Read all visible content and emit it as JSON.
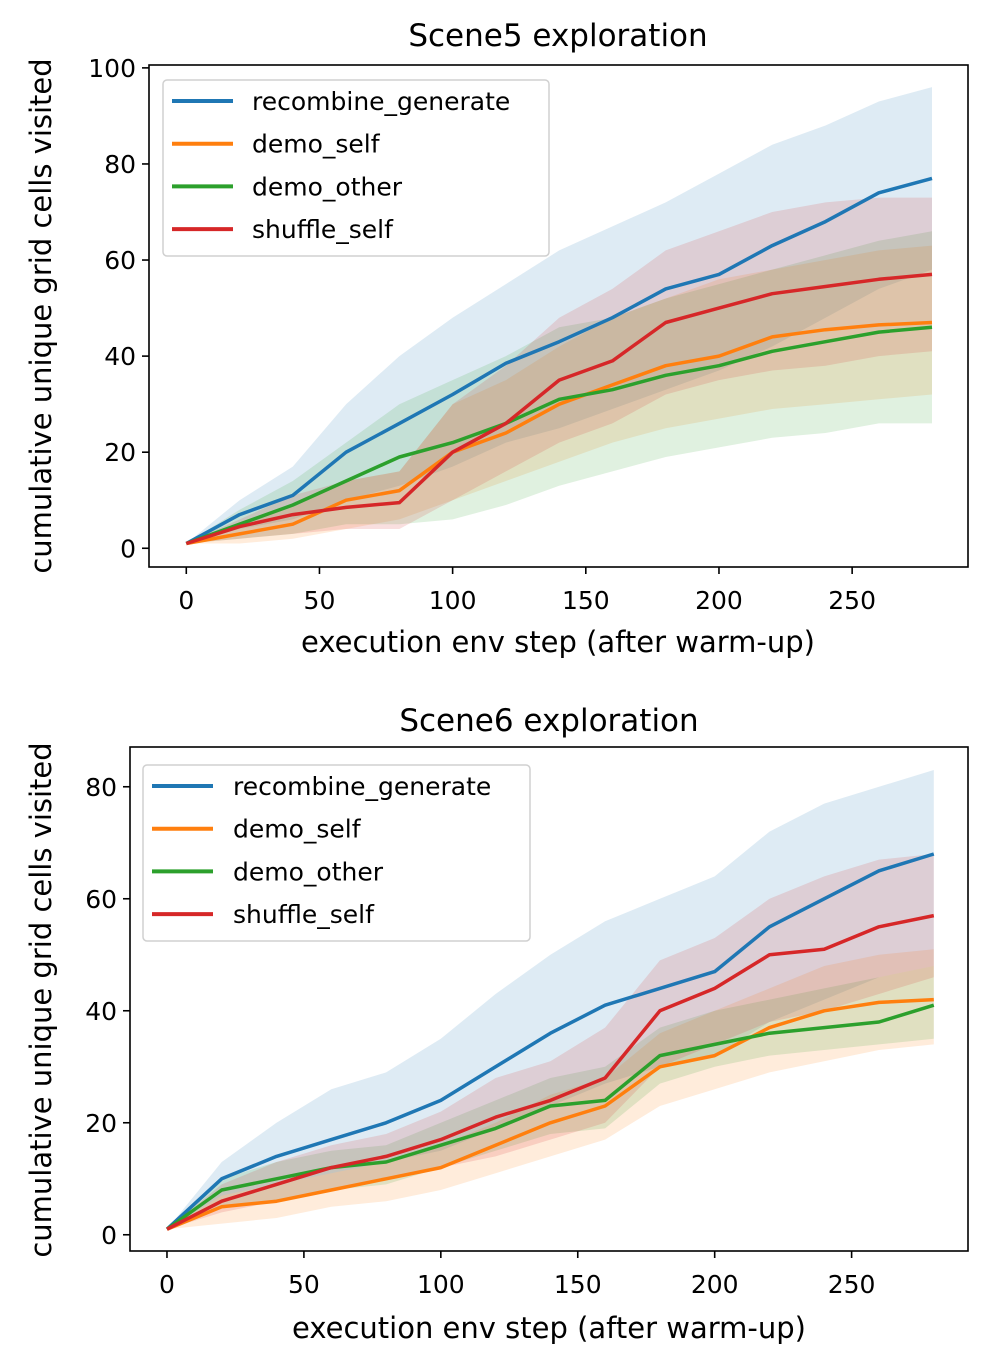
{
  "chart_data": [
    {
      "type": "line",
      "title": "Scene5 exploration",
      "xlabel": "execution env step (after warm-up)",
      "ylabel": "cumulative unique grid cells visited",
      "xlim": [
        -14,
        293.5
      ],
      "ylim": [
        -3.9,
        100.6
      ],
      "xticks": [
        0,
        50,
        100,
        150,
        200,
        250
      ],
      "yticks": [
        0,
        20,
        40,
        60,
        80,
        100
      ],
      "grid": false,
      "legend_position": "top-left",
      "x": [
        0,
        20,
        40,
        60,
        80,
        100,
        120,
        140,
        160,
        180,
        200,
        220,
        240,
        260,
        280
      ],
      "series": [
        {
          "name": "recombine_generate",
          "color": "#1f77b4",
          "values": [
            1,
            7,
            11,
            20,
            26,
            32,
            38.5,
            43,
            48,
            54,
            57,
            63,
            68,
            74,
            77
          ],
          "upper": [
            1,
            10,
            17,
            30,
            40,
            48,
            55,
            62,
            67,
            72,
            78,
            84,
            88,
            93,
            96
          ],
          "lower": [
            1,
            4,
            6,
            10,
            13,
            17,
            22,
            25,
            29,
            33,
            37,
            42,
            48,
            54,
            58
          ]
        },
        {
          "name": "demo_self",
          "color": "#ff7f0e",
          "values": [
            1,
            3,
            5,
            10,
            12,
            20,
            24,
            30,
            34,
            38,
            40,
            44,
            45.5,
            46.5,
            47
          ],
          "upper": [
            1,
            5,
            9,
            14,
            16,
            30,
            35,
            42,
            48,
            52,
            56,
            58,
            60,
            62,
            63
          ],
          "lower": [
            1,
            1,
            2,
            4,
            6,
            10,
            14,
            18,
            22,
            25,
            27,
            29,
            30,
            31,
            32
          ]
        },
        {
          "name": "demo_other",
          "color": "#2ca02c",
          "values": [
            1,
            5,
            9,
            14,
            19,
            22,
            26,
            31,
            33,
            36,
            38,
            41,
            43,
            45,
            46
          ],
          "upper": [
            1,
            8,
            14,
            22,
            30,
            35,
            40,
            46,
            48,
            52,
            55,
            58,
            61,
            64,
            66
          ],
          "lower": [
            1,
            2,
            3,
            5,
            5,
            6,
            9,
            13,
            16,
            19,
            21,
            23,
            24,
            26,
            26
          ]
        },
        {
          "name": "shuffle_self",
          "color": "#d62728",
          "values": [
            1,
            4.5,
            7,
            8.5,
            9.5,
            20,
            26,
            35,
            39,
            47,
            50,
            53,
            54.5,
            56,
            57
          ],
          "upper": [
            1,
            6,
            11,
            14,
            16,
            30,
            38,
            48,
            54,
            62,
            66,
            70,
            72,
            73,
            73
          ],
          "lower": [
            1,
            2,
            3,
            4,
            4,
            10,
            16,
            22,
            26,
            32,
            35,
            37,
            38,
            40,
            41
          ]
        }
      ]
    },
    {
      "type": "line",
      "title": "Scene6 exploration",
      "xlabel": "execution env step (after warm-up)",
      "ylabel": "cumulative unique grid cells visited",
      "xlim": [
        -13.5,
        292.5
      ],
      "ylim": [
        -2.9,
        87.1
      ],
      "xticks": [
        0,
        50,
        100,
        150,
        200,
        250
      ],
      "yticks": [
        0,
        20,
        40,
        60,
        80
      ],
      "grid": false,
      "legend_position": "top-left",
      "x": [
        0,
        20,
        40,
        60,
        80,
        100,
        120,
        140,
        160,
        180,
        200,
        220,
        240,
        260,
        280
      ],
      "series": [
        {
          "name": "recombine_generate",
          "color": "#1f77b4",
          "values": [
            1,
            10,
            14,
            17,
            20,
            24,
            30,
            36,
            41,
            44,
            47,
            55,
            60,
            65,
            68
          ],
          "upper": [
            1,
            13,
            20,
            26,
            29,
            35,
            43,
            50,
            56,
            60,
            64,
            72,
            77,
            80,
            83
          ],
          "lower": [
            1,
            7,
            9,
            11,
            13,
            15,
            19,
            23,
            27,
            30,
            32,
            38,
            42,
            46,
            48
          ]
        },
        {
          "name": "demo_self",
          "color": "#ff7f0e",
          "values": [
            1,
            5,
            6,
            8,
            10,
            12,
            16,
            20,
            23,
            30,
            32,
            37,
            40,
            41.5,
            42
          ],
          "upper": [
            1,
            7,
            9,
            11,
            13,
            16,
            20,
            25,
            28,
            36,
            40,
            44,
            48,
            50,
            51
          ],
          "lower": [
            1,
            2,
            3,
            5,
            6,
            8,
            11,
            14,
            17,
            23,
            26,
            29,
            31,
            33,
            34
          ]
        },
        {
          "name": "demo_other",
          "color": "#2ca02c",
          "values": [
            1,
            8,
            10,
            12,
            13,
            16,
            19,
            23,
            24,
            32,
            34,
            36,
            37,
            38,
            41
          ],
          "upper": [
            1,
            10,
            13,
            15,
            16,
            20,
            24,
            28,
            30,
            37,
            40,
            42,
            44,
            46,
            48
          ],
          "lower": [
            1,
            5,
            6,
            8,
            9,
            12,
            15,
            18,
            19,
            27,
            30,
            32,
            33,
            34,
            35
          ]
        },
        {
          "name": "shuffle_self",
          "color": "#d62728",
          "values": [
            1,
            6,
            9,
            12,
            14,
            17,
            21,
            24,
            28,
            40,
            44,
            50,
            51,
            55,
            57
          ],
          "upper": [
            1,
            9,
            13,
            16,
            18,
            22,
            28,
            31,
            37,
            49,
            53,
            60,
            64,
            67,
            68
          ],
          "lower": [
            1,
            4,
            6,
            8,
            10,
            12,
            14,
            17,
            20,
            30,
            34,
            38,
            40,
            43,
            46
          ]
        }
      ]
    }
  ]
}
